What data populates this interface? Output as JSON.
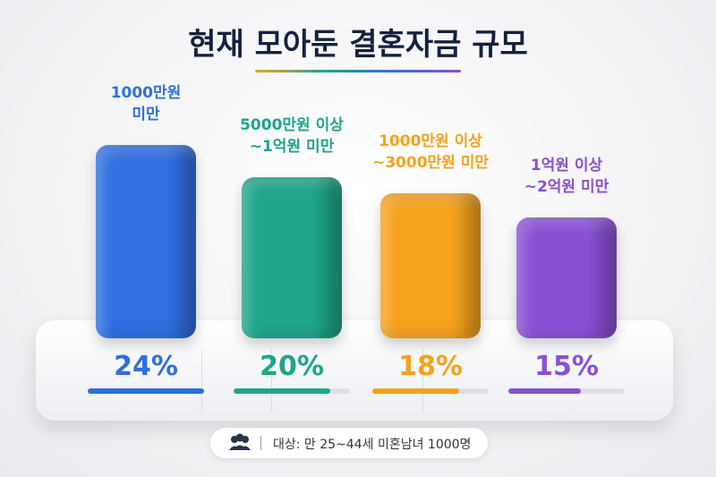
{
  "chart_data": {
    "type": "bar",
    "title": "현재 모아둔 결혼자금 규모",
    "categories": [
      "1000만원\n미만",
      "5000만원 이상\n~1억원 미만",
      "1000만원 이상\n~3000만원 미만",
      "1억원 이상\n~2억원 미만"
    ],
    "values": [
      24,
      20,
      18,
      15
    ],
    "value_labels": [
      "24%",
      "20%",
      "18%",
      "15%"
    ],
    "colors": [
      "#2f6fe0",
      "#1ea58a",
      "#f5a21d",
      "#8a4fd6"
    ],
    "footnote": "대상: 만 25~44세 미혼남녀 1000명"
  }
}
